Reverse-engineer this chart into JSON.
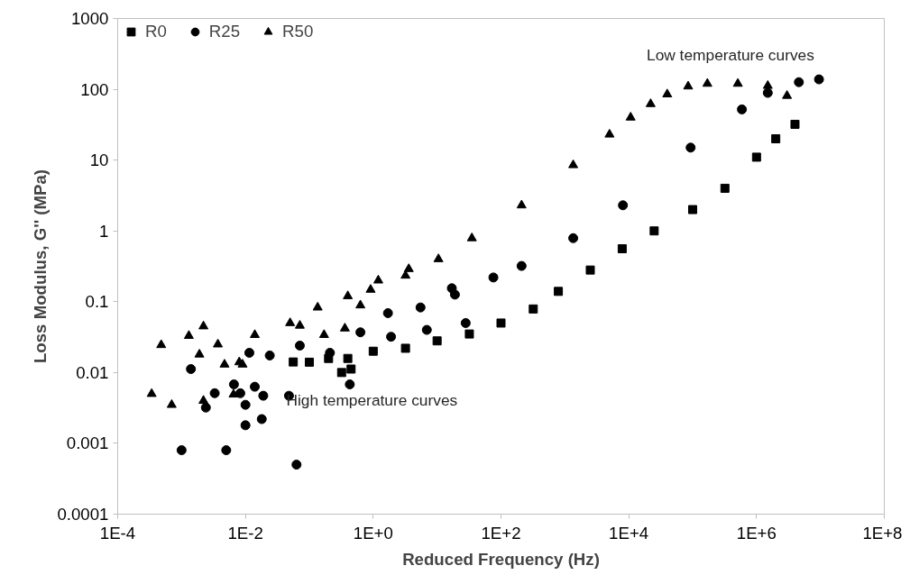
{
  "chart_data": {
    "type": "scatter",
    "xlabel": "Reduced Frequency (Hz)",
    "ylabel": "Loss Modulus, G'' (MPa)",
    "log": "xy",
    "grid": false,
    "legend": "top left",
    "xlim": [
      0.0001,
      100000000
    ],
    "ylim": [
      0.0001,
      1000
    ],
    "xticks": [
      {
        "value": 0.0001,
        "label": "1E-4"
      },
      {
        "value": 0.01,
        "label": "1E-2"
      },
      {
        "value": 1,
        "label": "1E+0"
      },
      {
        "value": 100,
        "label": "1E+2"
      },
      {
        "value": 10000,
        "label": "1E+4"
      },
      {
        "value": 1000000,
        "label": "1E+6"
      },
      {
        "value": 100000000,
        "label": "1E+8"
      }
    ],
    "yticks": [
      0.0001,
      0.001,
      0.01,
      0.1,
      1,
      10,
      100,
      1000
    ],
    "annotations": [
      "Low temperature curves",
      "High temperature curves"
    ],
    "series": [
      {
        "name": "R0",
        "color": "#000000",
        "marker": "square",
        "x": [
          0.056,
          0.1,
          0.2,
          0.32,
          0.45,
          0.4,
          1,
          3.2,
          10,
          32,
          100,
          320,
          790,
          2500,
          7900,
          25000,
          100000,
          320000,
          1000000,
          2000000,
          4000000
        ],
        "values": [
          0.0141,
          0.014,
          0.0158,
          0.01,
          0.0112,
          0.0158,
          0.02,
          0.022,
          0.028,
          0.035,
          0.05,
          0.079,
          0.14,
          0.28,
          0.56,
          1,
          2,
          4,
          11,
          20,
          32
        ]
      },
      {
        "name": "R25",
        "color": "#000000",
        "marker": "circle",
        "x": [
          0.001,
          0.005,
          0.063,
          0.01,
          0.018,
          0.01,
          0.019,
          0.0024,
          0.048,
          0.0083,
          0.014,
          0.0066,
          0.0033,
          0.43,
          0.0014,
          0.024,
          0.0115,
          0.071,
          0.21,
          0.63,
          1.9,
          1.7,
          5.5,
          6.9,
          17,
          28,
          19,
          76,
          210,
          1350,
          8100,
          93000,
          590000,
          1500000,
          4600000,
          9500000
        ],
        "values": [
          0.0008,
          0.0008,
          0.0005,
          0.0018,
          0.0022,
          0.0035,
          0.0047,
          0.0032,
          0.0047,
          0.0051,
          0.0063,
          0.0068,
          0.0051,
          0.0068,
          0.0112,
          0.0174,
          0.019,
          0.024,
          0.019,
          0.037,
          0.032,
          0.069,
          0.083,
          0.04,
          0.155,
          0.05,
          0.126,
          0.22,
          0.32,
          0.79,
          2.3,
          15,
          52,
          89,
          126,
          138
        ]
      },
      {
        "name": "R50",
        "color": "#000000",
        "marker": "triangle",
        "x": [
          0.00034,
          0.00048,
          0.0007,
          0.0013,
          0.0019,
          0.0022,
          0.0022,
          0.0037,
          0.0047,
          0.0065,
          0.008,
          0.009,
          0.014,
          0.05,
          0.071,
          0.135,
          0.17,
          0.36,
          0.4,
          0.63,
          0.91,
          1.2,
          3.2,
          3.6,
          10.5,
          35,
          210,
          1350,
          5000,
          10700,
          22000,
          40000,
          85000,
          170000,
          510000,
          1500000,
          3000000
        ],
        "values": [
          0.005,
          0.0245,
          0.0035,
          0.033,
          0.018,
          0.004,
          0.045,
          0.025,
          0.013,
          0.0049,
          0.014,
          0.013,
          0.034,
          0.05,
          0.046,
          0.083,
          0.034,
          0.042,
          0.12,
          0.089,
          0.148,
          0.2,
          0.234,
          0.29,
          0.4,
          0.79,
          2.3,
          8.5,
          23,
          40,
          62,
          85,
          110,
          120,
          120,
          112,
          81
        ]
      }
    ]
  }
}
